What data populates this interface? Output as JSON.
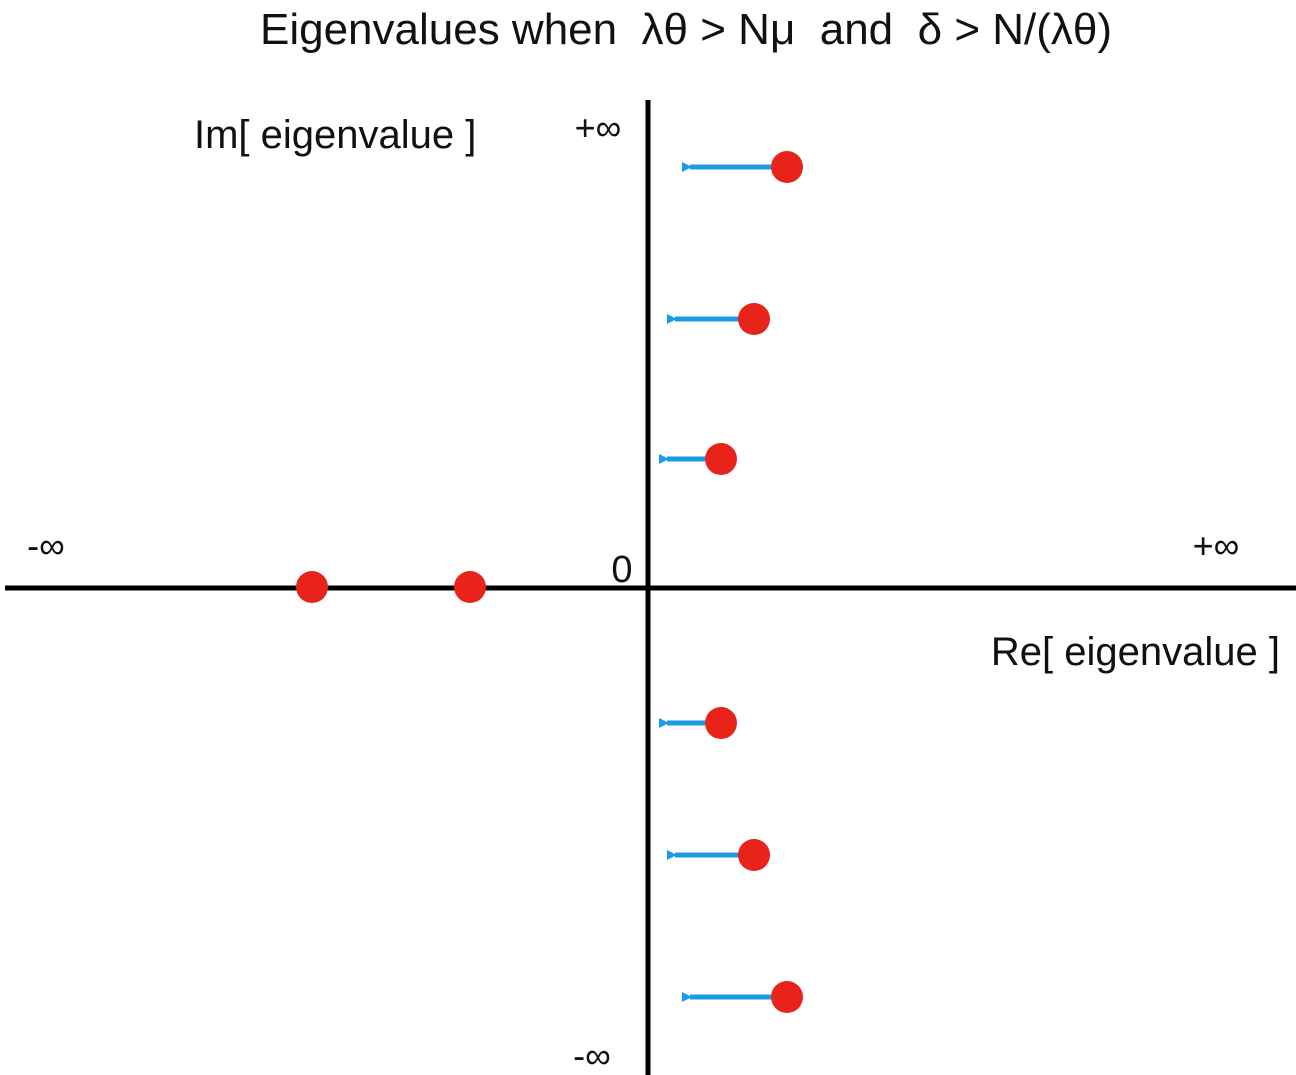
{
  "title": "Eigenvalues when  λθ > Nμ  and  δ > N/(λθ)",
  "axes": {
    "imaginary_label": "Im[ eigenvalue ]",
    "real_label": "Re[ eigenvalue ]",
    "top": "+∞",
    "bottom": "-∞",
    "left": "-∞",
    "right": "+∞",
    "origin": "0"
  }
}
